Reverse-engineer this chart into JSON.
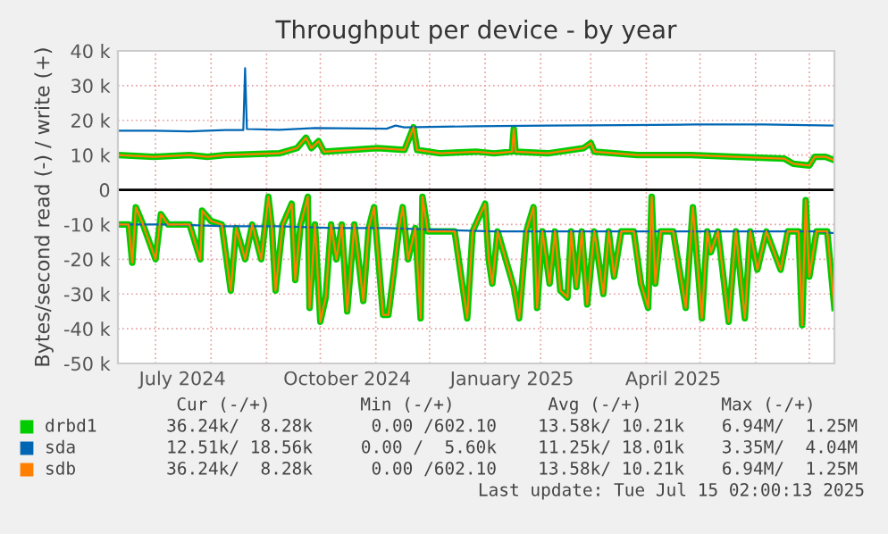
{
  "chart_data": {
    "type": "line",
    "title": "Throughput per device - by year",
    "ylabel": "Bytes/second read (-) / write (+)",
    "xlim": [
      "2024-06-10",
      "2025-07-15"
    ],
    "xticks": [
      {
        "value": "2024-07-01",
        "label": null
      },
      {
        "value": "2024-08-01",
        "label": null
      },
      {
        "value": "2024-09-01",
        "label": null
      },
      {
        "value": "2024-10-01",
        "label": null
      },
      {
        "value": "2024-11-01",
        "label": null
      },
      {
        "value": "2024-12-01",
        "label": null
      },
      {
        "value": "2025-01-01",
        "label": null
      },
      {
        "value": "2025-02-01",
        "label": null
      },
      {
        "value": "2025-03-01",
        "label": null
      },
      {
        "value": "2025-04-01",
        "label": null
      },
      {
        "value": "2025-05-01",
        "label": null
      },
      {
        "value": "2025-06-01",
        "label": null
      },
      {
        "value": "2025-07-01",
        "label": null
      },
      {
        "value": "2024-07-16",
        "label": "July 2024"
      },
      {
        "value": "2024-10-16",
        "label": "October 2024"
      },
      {
        "value": "2025-01-16",
        "label": "January 2025"
      },
      {
        "value": "2025-04-16",
        "label": "April 2025"
      }
    ],
    "ylim": [
      -50000,
      40000
    ],
    "yticks": [
      {
        "value": -50000,
        "label": "-50 k"
      },
      {
        "value": -40000,
        "label": "-40 k"
      },
      {
        "value": -30000,
        "label": "-30 k"
      },
      {
        "value": -20000,
        "label": "-20 k"
      },
      {
        "value": -10000,
        "label": "-10 k"
      },
      0,
      {
        "value": 10000,
        "label": "10 k"
      },
      {
        "value": 20000,
        "label": "20 k"
      },
      {
        "value": 30000,
        "label": "30 k"
      },
      {
        "value": 40000,
        "label": "40 k"
      }
    ],
    "grid": true,
    "legend": "bottom",
    "line_style": "solid",
    "marker": "none",
    "ref_lines": [
      {
        "axis": "y",
        "value": 0,
        "label": null,
        "color": "#000000"
      }
    ],
    "series": [
      {
        "name": "drbd1",
        "color": "#00cc00",
        "x": [
          "2024-06-10",
          "2024-06-30",
          "2024-07-20",
          "2024-07-30",
          "2024-08-09",
          "2024-09-08",
          "2024-09-18",
          "2024-09-23",
          "2024-09-26",
          "2024-09-30",
          "2024-10-03",
          "2024-10-18",
          "2024-11-02",
          "2024-11-17",
          "2024-11-22",
          "2024-11-24",
          "2024-12-07",
          "2024-12-27",
          "2025-01-06",
          "2025-01-16",
          "2025-01-17",
          "2025-01-18",
          "2025-02-05",
          "2025-02-25",
          "2025-03-01",
          "2025-03-03",
          "2025-03-27",
          "2025-04-26",
          "2025-05-21",
          "2025-06-17",
          "2025-06-22",
          "2025-07-01",
          "2025-07-04",
          "2025-07-10",
          "2025-07-15"
        ],
        "values": [
          10000,
          9500,
          10000,
          9500,
          10000,
          10500,
          12000,
          15000,
          12000,
          14000,
          11000,
          11500,
          12000,
          11500,
          18000,
          11500,
          10500,
          11000,
          10500,
          11000,
          17500,
          11000,
          10500,
          12000,
          13500,
          11000,
          10000,
          10000,
          9500,
          9000,
          7500,
          7000,
          9500,
          9500,
          8500
        ]
      },
      {
        "color": "#00cc00",
        "x": [
          "2024-06-10",
          "2024-06-16",
          "2024-06-18",
          "2024-06-20",
          "2024-06-24",
          "2024-07-01",
          "2024-07-04",
          "2024-07-08",
          "2024-07-20",
          "2024-07-26",
          "2024-07-27",
          "2024-08-01",
          "2024-08-07",
          "2024-08-12",
          "2024-08-15",
          "2024-08-20",
          "2024-08-24",
          "2024-08-29",
          "2024-09-02",
          "2024-09-04",
          "2024-09-06",
          "2024-09-10",
          "2024-09-15",
          "2024-09-17",
          "2024-09-20",
          "2024-09-24",
          "2024-09-25",
          "2024-09-28",
          "2024-10-01",
          "2024-10-04",
          "2024-10-07",
          "2024-10-10",
          "2024-10-13",
          "2024-10-16",
          "2024-10-20",
          "2024-10-25",
          "2024-10-28",
          "2024-10-31",
          "2024-11-05",
          "2024-11-08",
          "2024-11-11",
          "2024-11-14",
          "2024-11-16",
          "2024-11-19",
          "2024-11-23",
          "2024-11-26",
          "2024-11-27",
          "2024-11-30",
          "2024-12-07",
          "2024-12-15",
          "2024-12-22",
          "2024-12-25",
          "2025-01-01",
          "2025-01-03",
          "2025-01-05",
          "2025-01-08",
          "2025-01-17",
          "2025-01-20",
          "2025-01-24",
          "2025-01-28",
          "2025-01-30",
          "2025-02-02",
          "2025-02-06",
          "2025-02-09",
          "2025-02-12",
          "2025-02-16",
          "2025-02-18",
          "2025-02-21",
          "2025-02-24",
          "2025-02-27",
          "2025-03-03",
          "2025-03-08",
          "2025-03-11",
          "2025-03-14",
          "2025-03-18",
          "2025-03-25",
          "2025-03-29",
          "2025-04-02",
          "2025-04-04",
          "2025-04-06",
          "2025-04-09",
          "2025-04-16",
          "2025-04-23",
          "2025-04-27",
          "2025-05-02",
          "2025-05-05",
          "2025-05-07",
          "2025-05-11",
          "2025-05-17",
          "2025-05-21",
          "2025-05-26",
          "2025-05-29",
          "2025-06-02",
          "2025-06-07",
          "2025-06-15",
          "2025-06-19",
          "2025-06-25",
          "2025-06-27",
          "2025-06-29",
          "2025-07-01",
          "2025-07-05",
          "2025-07-11",
          "2025-07-15"
        ],
        "values": [
          -10000,
          -10000,
          -21000,
          -5000,
          -10000,
          -20000,
          -7000,
          -10000,
          -10000,
          -20000,
          -6000,
          -9000,
          -10000,
          -29000,
          -11000,
          -20000,
          -10000,
          -20000,
          -2000,
          -11000,
          -29000,
          -10000,
          -4000,
          -26000,
          -10000,
          -2000,
          -34000,
          -10000,
          -38000,
          -31000,
          -10000,
          -20000,
          -10000,
          -35000,
          -10000,
          -32000,
          -11000,
          -5000,
          -36000,
          -36000,
          -24000,
          -11000,
          -5000,
          -20000,
          -11000,
          -37000,
          -2000,
          -12000,
          -12000,
          -12000,
          -37000,
          -12000,
          -4000,
          -20000,
          -27000,
          -12000,
          -28000,
          -37000,
          -12000,
          -5000,
          -34000,
          -12000,
          -27000,
          -12000,
          -29000,
          -31000,
          -12000,
          -28000,
          -12000,
          -33000,
          -12000,
          -30000,
          -12000,
          -25000,
          -12000,
          -12000,
          -27000,
          -34000,
          -2000,
          -27000,
          -12000,
          -12000,
          -34000,
          -5000,
          -37000,
          -12000,
          -18000,
          -12000,
          -38000,
          -12000,
          -37000,
          -12000,
          -23000,
          -12000,
          -23000,
          -12000,
          -12000,
          -39000,
          -3000,
          -25000,
          -12000,
          -12000,
          -34000
        ]
      },
      {
        "name": "sda",
        "color": "#0066b3",
        "x": [
          "2024-06-10",
          "2024-06-30",
          "2024-07-20",
          "2024-08-09",
          "2024-08-19",
          "2024-08-20",
          "2024-08-21",
          "2024-09-08",
          "2024-09-28",
          "2024-11-07",
          "2024-11-12",
          "2024-11-17",
          "2024-12-27",
          "2025-02-05",
          "2025-03-20",
          "2025-04-29",
          "2025-06-05",
          "2025-07-15"
        ],
        "values": [
          17000,
          17000,
          16800,
          17200,
          17200,
          35000,
          17500,
          17300,
          17800,
          17600,
          18500,
          18000,
          18300,
          18500,
          18600,
          18800,
          18800,
          18500
        ]
      },
      {
        "color": "#0066b3",
        "x": [
          "2024-06-10",
          "2024-07-10",
          "2024-08-09",
          "2024-09-08",
          "2024-10-08",
          "2024-11-07",
          "2024-12-07",
          "2025-01-06",
          "2025-02-05",
          "2025-03-07",
          "2025-04-06",
          "2025-05-06",
          "2025-06-05",
          "2025-07-05",
          "2025-07-15"
        ],
        "values": [
          -10000,
          -10000,
          -10500,
          -10500,
          -11000,
          -11000,
          -11500,
          -12000,
          -12000,
          -12000,
          -12000,
          -12000,
          -12000,
          -12000,
          -12500
        ]
      },
      {
        "name": "sdb",
        "color": "#ff8000",
        "x": [
          "2024-06-10",
          "2024-06-30",
          "2024-07-20",
          "2024-07-30",
          "2024-08-09",
          "2024-09-08",
          "2024-09-18",
          "2024-09-23",
          "2024-09-26",
          "2024-09-30",
          "2024-10-03",
          "2024-10-18",
          "2024-11-02",
          "2024-11-17",
          "2024-11-22",
          "2024-11-24",
          "2024-12-07",
          "2024-12-27",
          "2025-01-06",
          "2025-01-16",
          "2025-01-17",
          "2025-01-18",
          "2025-02-05",
          "2025-02-25",
          "2025-03-01",
          "2025-03-03",
          "2025-03-27",
          "2025-04-26",
          "2025-05-21",
          "2025-06-17",
          "2025-06-22",
          "2025-07-01",
          "2025-07-04",
          "2025-07-10",
          "2025-07-15"
        ],
        "values": [
          10000,
          9500,
          10000,
          9500,
          10000,
          10500,
          12000,
          15000,
          12000,
          14000,
          11000,
          11500,
          12000,
          11500,
          18000,
          11500,
          10500,
          11000,
          10500,
          11000,
          17500,
          11000,
          10500,
          12000,
          13500,
          11000,
          10000,
          10000,
          9500,
          9000,
          7500,
          7000,
          9500,
          9500,
          8500
        ]
      },
      {
        "color": "#ff8000",
        "x": [
          "2024-06-10",
          "2024-06-16",
          "2024-06-18",
          "2024-06-20",
          "2024-06-24",
          "2024-07-01",
          "2024-07-04",
          "2024-07-08",
          "2024-07-20",
          "2024-07-26",
          "2024-07-27",
          "2024-08-01",
          "2024-08-07",
          "2024-08-12",
          "2024-08-15",
          "2024-08-20",
          "2024-08-24",
          "2024-08-29",
          "2024-09-02",
          "2024-09-04",
          "2024-09-06",
          "2024-09-10",
          "2024-09-15",
          "2024-09-17",
          "2024-09-20",
          "2024-09-24",
          "2024-09-25",
          "2024-09-28",
          "2024-10-01",
          "2024-10-04",
          "2024-10-07",
          "2024-10-10",
          "2024-10-13",
          "2024-10-16",
          "2024-10-20",
          "2024-10-25",
          "2024-10-28",
          "2024-10-31",
          "2024-11-05",
          "2024-11-08",
          "2024-11-11",
          "2024-11-14",
          "2024-11-16",
          "2024-11-19",
          "2024-11-23",
          "2024-11-26",
          "2024-11-27",
          "2024-11-30",
          "2024-12-07",
          "2024-12-15",
          "2024-12-22",
          "2024-12-25",
          "2025-01-01",
          "2025-01-03",
          "2025-01-05",
          "2025-01-08",
          "2025-01-17",
          "2025-01-20",
          "2025-01-24",
          "2025-01-28",
          "2025-01-30",
          "2025-02-02",
          "2025-02-06",
          "2025-02-09",
          "2025-02-12",
          "2025-02-16",
          "2025-02-18",
          "2025-02-21",
          "2025-02-24",
          "2025-02-27",
          "2025-03-03",
          "2025-03-08",
          "2025-03-11",
          "2025-03-14",
          "2025-03-18",
          "2025-03-25",
          "2025-03-29",
          "2025-04-02",
          "2025-04-04",
          "2025-04-06",
          "2025-04-09",
          "2025-04-16",
          "2025-04-23",
          "2025-04-27",
          "2025-05-02",
          "2025-05-05",
          "2025-05-07",
          "2025-05-11",
          "2025-05-17",
          "2025-05-21",
          "2025-05-26",
          "2025-05-29",
          "2025-06-02",
          "2025-06-07",
          "2025-06-15",
          "2025-06-19",
          "2025-06-25",
          "2025-06-27",
          "2025-06-29",
          "2025-07-01",
          "2025-07-05",
          "2025-07-11",
          "2025-07-15"
        ],
        "values": [
          -10000,
          -10000,
          -21000,
          -5000,
          -10000,
          -20000,
          -7000,
          -10000,
          -10000,
          -20000,
          -6000,
          -9000,
          -10000,
          -29000,
          -11000,
          -20000,
          -10000,
          -20000,
          -2000,
          -11000,
          -29000,
          -10000,
          -4000,
          -26000,
          -10000,
          -2000,
          -34000,
          -10000,
          -38000,
          -31000,
          -10000,
          -20000,
          -10000,
          -35000,
          -10000,
          -32000,
          -11000,
          -5000,
          -36000,
          -36000,
          -24000,
          -11000,
          -5000,
          -20000,
          -11000,
          -37000,
          -2000,
          -12000,
          -12000,
          -12000,
          -37000,
          -12000,
          -4000,
          -20000,
          -27000,
          -12000,
          -28000,
          -37000,
          -12000,
          -5000,
          -34000,
          -12000,
          -27000,
          -12000,
          -29000,
          -31000,
          -12000,
          -28000,
          -12000,
          -33000,
          -12000,
          -30000,
          -12000,
          -25000,
          -12000,
          -12000,
          -27000,
          -34000,
          -2000,
          -27000,
          -12000,
          -12000,
          -34000,
          -5000,
          -37000,
          -12000,
          -18000,
          -12000,
          -38000,
          -12000,
          -37000,
          -12000,
          -23000,
          -12000,
          -23000,
          -12000,
          -12000,
          -39000,
          -3000,
          -25000,
          -12000,
          -12000,
          -34000
        ]
      }
    ],
    "annotations": [
      "Cur (-/+)",
      "Min (-/+)",
      "Avg (-/+)",
      "Max (-/+)",
      "36.24k/  8.28k",
      "0.00 /602.10",
      "13.58k/ 10.21k",
      "6.94M/  1.25M",
      "12.51k/ 18.56k",
      "0.00 /  5.60k",
      "11.25k/ 18.01k",
      "3.35M/  4.04M",
      "36.24k/  8.28k",
      "0.00 /602.10",
      "13.58k/ 10.21k",
      "6.94M/  1.25M",
      "Last update: Tue Jul 15 02:00:13 2025"
    ]
  }
}
